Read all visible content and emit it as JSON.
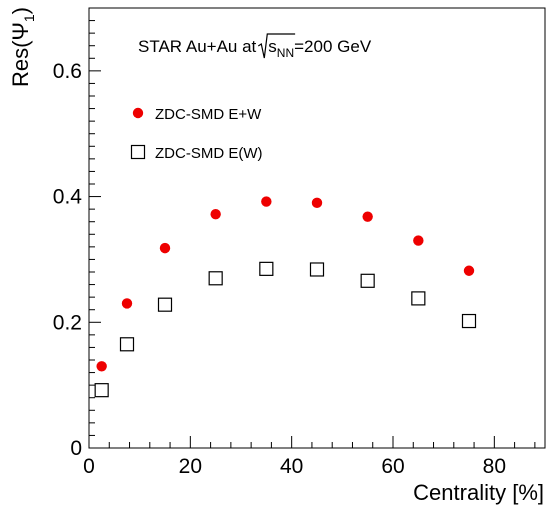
{
  "chart_data": {
    "type": "scatter",
    "annotation": {
      "prefix": "STAR Au+Au at ",
      "sqrt_base": "s",
      "sqrt_subscript": "NN",
      "suffix": "=200 GeV"
    },
    "xlabel": "Centrality [%]",
    "ylabel": {
      "prefix": "Res(",
      "symbol": "Ψ",
      "subscript": "1",
      "suffix": ")"
    },
    "xlim": [
      0,
      90
    ],
    "ylim": [
      0,
      0.7
    ],
    "xticks": [
      0,
      20,
      40,
      60,
      80
    ],
    "xtick_labels": [
      "0",
      "20",
      "40",
      "60",
      "80"
    ],
    "yticks": [
      0,
      0.2,
      0.4,
      0.6
    ],
    "ytick_labels": [
      "0",
      "0.2",
      "0.4",
      "0.6"
    ],
    "grid": false,
    "legend_position": "top-left",
    "series": [
      {
        "name": "ZDC-SMD E+W",
        "marker": "filled-circle",
        "color": "#ee0000",
        "x": [
          2.5,
          7.5,
          15,
          25,
          35,
          45,
          55,
          65,
          75
        ],
        "y": [
          0.13,
          0.23,
          0.318,
          0.372,
          0.392,
          0.39,
          0.368,
          0.33,
          0.282
        ]
      },
      {
        "name": "ZDC-SMD E(W)",
        "marker": "open-square",
        "color": "#000000",
        "x": [
          2.5,
          7.5,
          15,
          25,
          35,
          45,
          55,
          65,
          75
        ],
        "y": [
          0.092,
          0.165,
          0.228,
          0.27,
          0.285,
          0.284,
          0.266,
          0.238,
          0.202
        ]
      }
    ]
  }
}
